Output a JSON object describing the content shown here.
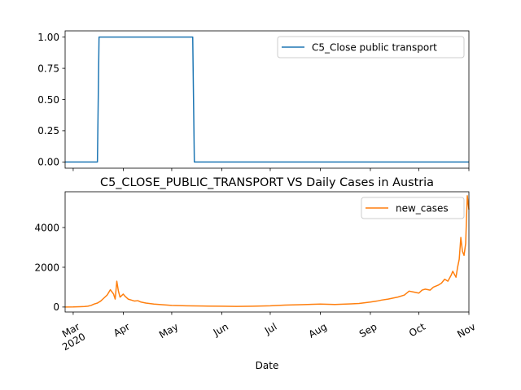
{
  "chart_data": [
    {
      "type": "line",
      "title": "",
      "xlabel": "",
      "ylabel": "",
      "ylim": [
        -0.05,
        1.05
      ],
      "yticks": [
        0.0,
        0.25,
        0.5,
        0.75,
        1.0
      ],
      "ytick_labels": [
        "0.00",
        "0.25",
        "0.50",
        "0.75",
        "1.00"
      ],
      "legend_position": "top-right",
      "grid": false,
      "series": [
        {
          "name": "C5_Close public transport",
          "color": "#1f77b4",
          "x": [
            "2020-02-25",
            "2020-03-16",
            "2020-03-17",
            "2020-05-14",
            "2020-05-15",
            "2020-11-01"
          ],
          "y": [
            0,
            0,
            1,
            1,
            0,
            0
          ]
        }
      ]
    },
    {
      "type": "line",
      "title": "C5_CLOSE_PUBLIC_TRANSPORT VS Daily Cases in Austria",
      "xlabel": "Date",
      "ylabel": "",
      "ylim": [
        -250,
        5800
      ],
      "yticks": [
        0,
        2000,
        4000
      ],
      "ytick_labels": [
        "0",
        "2000",
        "4000"
      ],
      "xlim": [
        "2020-02-25",
        "2020-11-01"
      ],
      "xtick_dates": [
        "2020-03-01",
        "2020-04-01",
        "2020-05-01",
        "2020-06-01",
        "2020-07-01",
        "2020-08-01",
        "2020-09-01",
        "2020-10-01",
        "2020-11-01"
      ],
      "xtick_labels": [
        "Mar\n2020",
        "Apr",
        "May",
        "Jun",
        "Jul",
        "Aug",
        "Sep",
        "Oct",
        "Nov"
      ],
      "legend_position": "top-right",
      "grid": false,
      "series": [
        {
          "name": "new_cases",
          "color": "#ff7f0e",
          "x": [
            "2020-02-25",
            "2020-03-01",
            "2020-03-05",
            "2020-03-08",
            "2020-03-10",
            "2020-03-12",
            "2020-03-14",
            "2020-03-16",
            "2020-03-18",
            "2020-03-20",
            "2020-03-22",
            "2020-03-24",
            "2020-03-26",
            "2020-03-27",
            "2020-03-28",
            "2020-03-29",
            "2020-03-30",
            "2020-04-01",
            "2020-04-02",
            "2020-04-04",
            "2020-04-06",
            "2020-04-08",
            "2020-04-10",
            "2020-04-12",
            "2020-04-15",
            "2020-04-20",
            "2020-04-25",
            "2020-05-01",
            "2020-05-10",
            "2020-05-20",
            "2020-06-01",
            "2020-06-10",
            "2020-06-20",
            "2020-07-01",
            "2020-07-10",
            "2020-07-20",
            "2020-08-01",
            "2020-08-10",
            "2020-08-20",
            "2020-08-25",
            "2020-09-01",
            "2020-09-05",
            "2020-09-08",
            "2020-09-12",
            "2020-09-15",
            "2020-09-18",
            "2020-09-22",
            "2020-09-25",
            "2020-09-28",
            "2020-10-01",
            "2020-10-03",
            "2020-10-05",
            "2020-10-08",
            "2020-10-10",
            "2020-10-13",
            "2020-10-15",
            "2020-10-17",
            "2020-10-19",
            "2020-10-21",
            "2020-10-22",
            "2020-10-24",
            "2020-10-25",
            "2020-10-26",
            "2020-10-27",
            "2020-10-28",
            "2020-10-29",
            "2020-10-30",
            "2020-10-31",
            "2020-11-01"
          ],
          "y": [
            2,
            5,
            15,
            25,
            40,
            80,
            150,
            200,
            300,
            450,
            600,
            870,
            650,
            400,
            1300,
            800,
            500,
            650,
            550,
            400,
            350,
            300,
            320,
            250,
            200,
            150,
            120,
            80,
            60,
            50,
            40,
            30,
            40,
            60,
            100,
            120,
            150,
            130,
            160,
            180,
            250,
            300,
            350,
            400,
            450,
            500,
            600,
            800,
            750,
            700,
            850,
            900,
            850,
            1000,
            1100,
            1200,
            1400,
            1300,
            1600,
            1800,
            1500,
            2000,
            2400,
            3500,
            2800,
            2600,
            3200,
            5600,
            4900
          ]
        }
      ]
    }
  ]
}
